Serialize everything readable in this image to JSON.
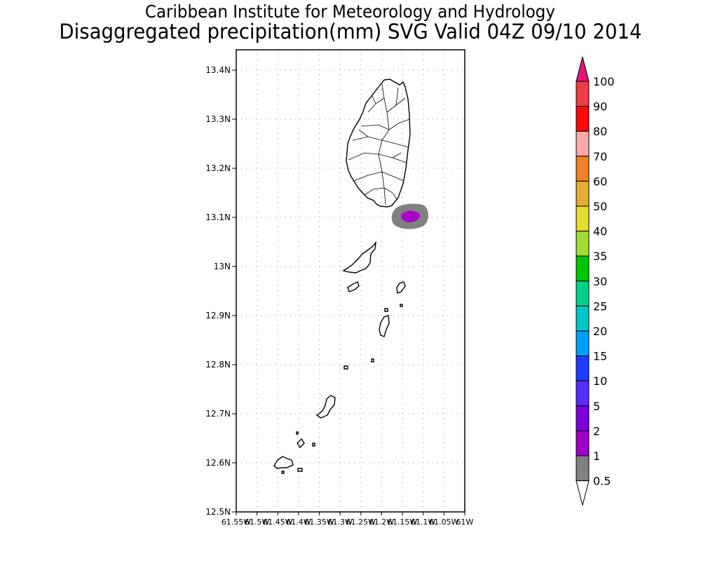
{
  "header": {
    "institute": "Caribbean Institute for Meteorology and Hydrology",
    "product": "Disaggregated precipitation(mm) SVG Valid 04Z 09/10 2014"
  },
  "map": {
    "lat_ticks": [
      "13.4N",
      "13.3N",
      "13.2N",
      "13.1N",
      "13N",
      "12.9N",
      "12.8N",
      "12.7N",
      "12.6N",
      "12.5N"
    ],
    "lon_ticks": [
      "61.55W",
      "61.5W",
      "61.45W",
      "61.4W",
      "61.35W",
      "61.3W",
      "61.25W",
      "61.2W",
      "61.15W",
      "61.1W",
      "61.05W",
      "61W"
    ],
    "lat_range": [
      12.5,
      13.45
    ],
    "lon_range": [
      -61.55,
      -61.0
    ],
    "grid": true,
    "precip_cell": {
      "lat": 13.1,
      "lon": -61.1,
      "outer_class": "0.5",
      "inner_class": "2"
    }
  },
  "legend": {
    "labels": [
      "100",
      "90",
      "80",
      "70",
      "60",
      "50",
      "40",
      "35",
      "30",
      "25",
      "20",
      "15",
      "10",
      "5",
      "2",
      "1",
      "0.5"
    ],
    "colors": [
      "#e0167a",
      "#f03c46",
      "#fa0a0a",
      "#fca8a8",
      "#f28028",
      "#e6ac32",
      "#e6dc32",
      "#a0dc32",
      "#00c800",
      "#00d28c",
      "#00c8c8",
      "#00a0ff",
      "#1e3cff",
      "#5a2dff",
      "#7a00dc",
      "#a000c8",
      "#808080"
    ],
    "over_color": "#e0167a",
    "under_color": "#ffffff"
  }
}
